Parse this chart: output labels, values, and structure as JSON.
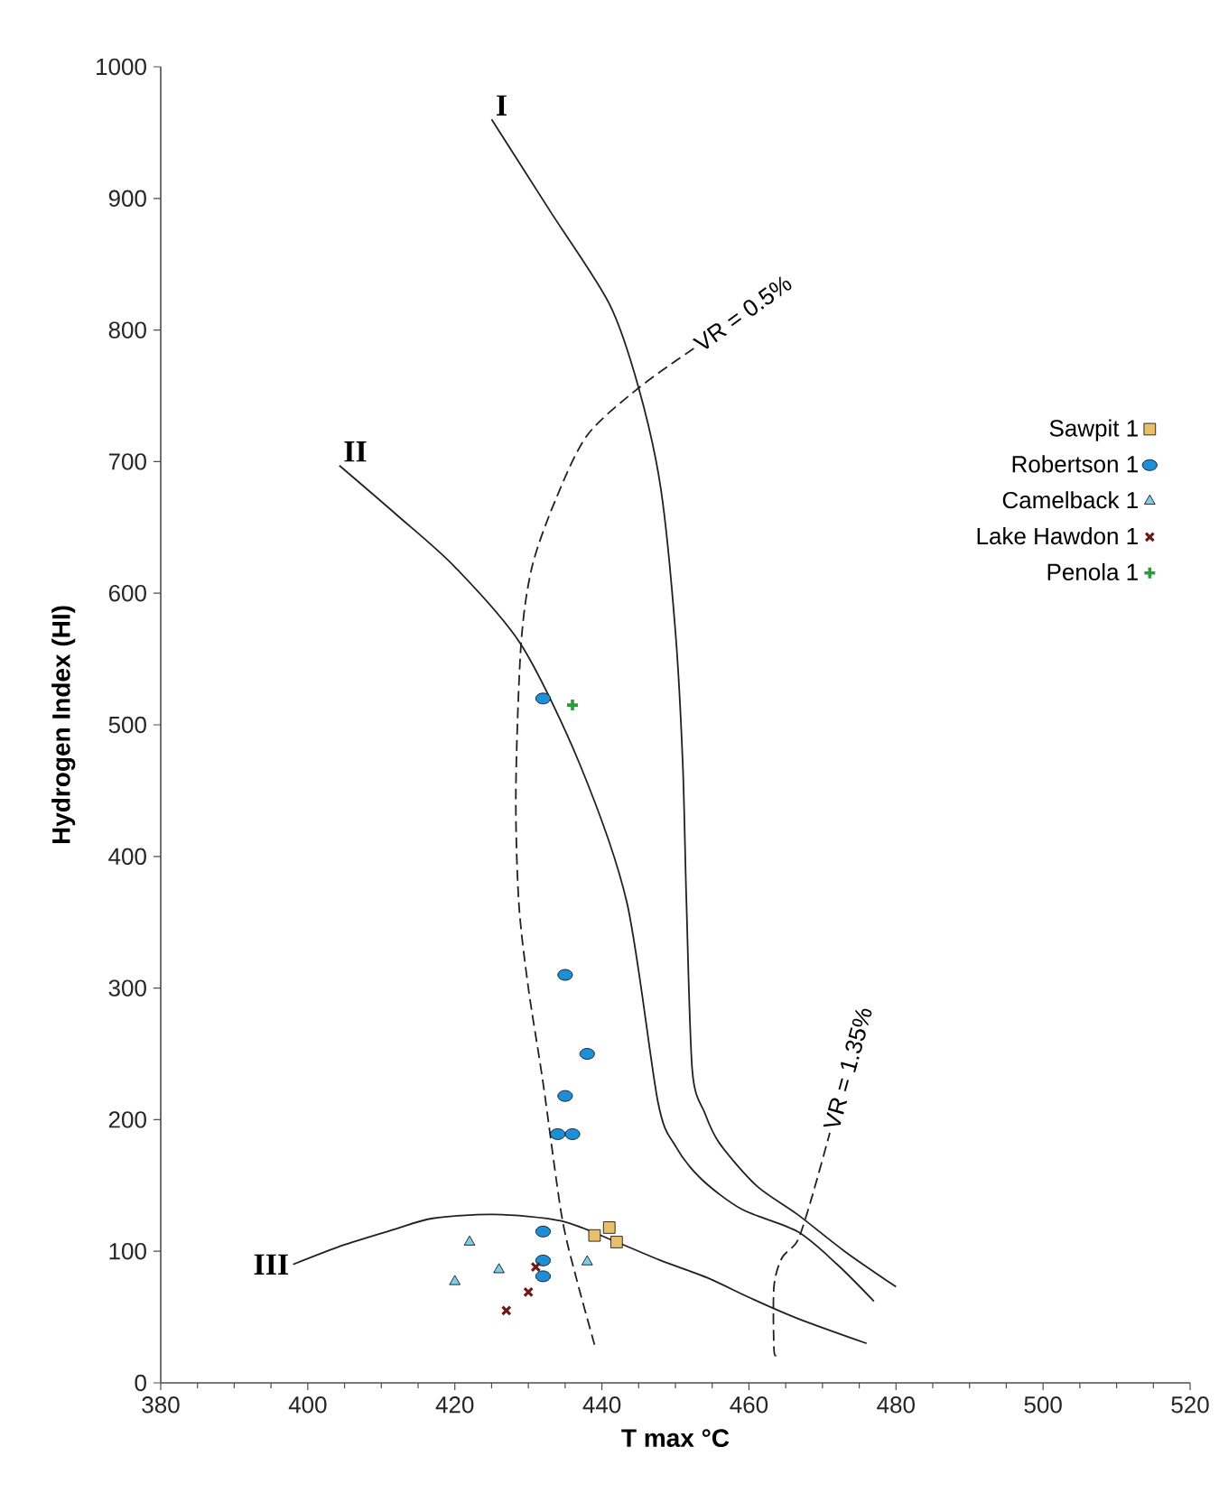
{
  "chart_data": {
    "type": "scatter",
    "xlabel": "T max °C",
    "ylabel": "Hydrogen Index (HI)",
    "xlim": [
      380,
      520
    ],
    "ylim": [
      0,
      1000
    ],
    "xticks": [
      380,
      400,
      420,
      440,
      460,
      480,
      500,
      520
    ],
    "yticks": [
      0,
      100,
      200,
      300,
      400,
      500,
      600,
      700,
      800,
      900,
      1000
    ],
    "grid": false,
    "legend": "right",
    "series": [
      {
        "name": "I",
        "type": "line",
        "color": "#231f20",
        "line_style": "solid",
        "x": [
          425,
          433,
          441,
          445,
          448,
          450,
          451,
          451.5,
          452.3,
          454,
          456,
          461,
          466.6,
          473,
          480
        ],
        "values": [
          960,
          890,
          820,
          756,
          680,
          571,
          470,
          365,
          237,
          205,
          182,
          150,
          128,
          100,
          73
        ]
      },
      {
        "name": "II",
        "type": "line",
        "color": "#231f20",
        "line_style": "solid",
        "x": [
          404.3,
          412,
          420,
          429,
          437,
          443.4,
          447.6,
          450,
          453.5,
          459,
          466.6,
          472,
          477
        ],
        "values": [
          697,
          660,
          620,
          561,
          470,
          365,
          214,
          180,
          155,
          132,
          115,
          90,
          62
        ]
      },
      {
        "name": "III",
        "type": "line",
        "color": "#231f20",
        "line_style": "solid",
        "x": [
          398,
          405,
          412,
          417,
          425.3,
          434.5,
          442,
          448,
          454.3,
          460,
          466.6,
          476
        ],
        "values": [
          90,
          105,
          117,
          125,
          128,
          123,
          107,
          93,
          80,
          65,
          49,
          30
        ]
      },
      {
        "name": "VR = 0.5%",
        "type": "line",
        "color": "#231f20",
        "line_style": "dashed",
        "x": [
          439,
          436.5,
          434.5,
          432,
          430,
          428.7,
          428.3,
          429,
          430.5,
          433.7,
          438,
          445,
          452.5
        ],
        "values": [
          29,
          80,
          128,
          228,
          300,
          365,
          450,
          561,
          620,
          671,
          720,
          756,
          786
        ]
      },
      {
        "name": "VR = 1.35%",
        "type": "line",
        "color": "#231f20",
        "line_style": "dashed",
        "x": [
          463.7,
          463.4,
          463.4,
          464.5,
          466.6,
          468.5,
          471
        ],
        "values": [
          21,
          26,
          73,
          95,
          108,
          140,
          190
        ]
      },
      {
        "name": "Sawpit 1",
        "marker": "square",
        "color": "#e8c06a",
        "x": [
          441,
          439,
          442
        ],
        "values": [
          118,
          112,
          107
        ]
      },
      {
        "name": "Robertson 1",
        "marker": "circle",
        "color": "#1e8fd6",
        "x": [
          432,
          435,
          438,
          435,
          434,
          436,
          432,
          432,
          432
        ],
        "values": [
          520,
          310,
          250,
          218,
          189,
          189,
          115,
          93,
          81
        ]
      },
      {
        "name": "Camelback 1",
        "marker": "triangle",
        "color": "#7fcbe8",
        "x": [
          422,
          426,
          420,
          438
        ],
        "values": [
          107,
          86,
          77,
          92
        ]
      },
      {
        "name": "Lake Hawdon 1",
        "marker": "cross",
        "color": "#6b1a1a",
        "x": [
          431,
          430,
          427
        ],
        "values": [
          88,
          69,
          55
        ]
      },
      {
        "name": "Penola 1",
        "marker": "plus",
        "color": "#2e9a3a",
        "x": [
          436
        ],
        "values": [
          515
        ]
      }
    ]
  }
}
